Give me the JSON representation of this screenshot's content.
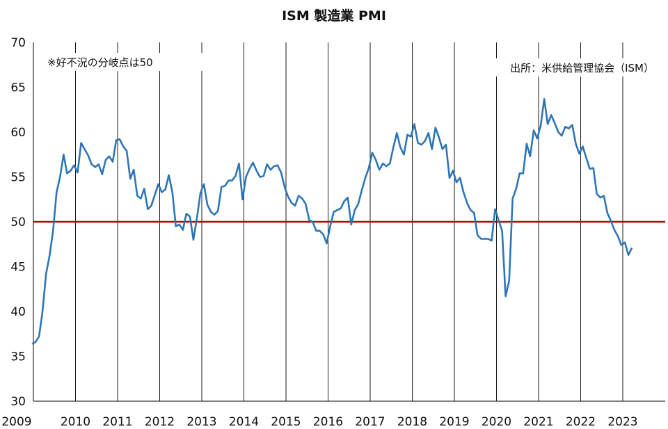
{
  "chart_data": {
    "type": "line",
    "title": "ISM 製造業 PMI",
    "annotations": {
      "note_left": "※好不況の分岐点は50",
      "note_right": "出所：米供給管理協会（ISM）"
    },
    "ylim": [
      30,
      70
    ],
    "y_ticks": [
      "30",
      "35",
      "40",
      "45",
      "50",
      "55",
      "60",
      "65",
      "70"
    ],
    "x_ticks": [
      "2009",
      "2010",
      "2011",
      "2012",
      "2013",
      "2014",
      "2015",
      "2016",
      "2017",
      "2018",
      "2019",
      "2020",
      "2021",
      "2022",
      "2023"
    ],
    "grid": "vertical",
    "legend": "none",
    "reference_line": {
      "value": 50,
      "color": "#c00000"
    },
    "series_color": "#2e75b6",
    "start_month": "2009-01",
    "series": [
      {
        "values": [
          36.4,
          36.6,
          37.2,
          40.0,
          44.2,
          46.2,
          49.0,
          53.3,
          55.0,
          57.5,
          55.4,
          55.7,
          56.3,
          55.5,
          58.8,
          58.1,
          57.4,
          56.4,
          56.1,
          56.4,
          55.3,
          56.9,
          57.3,
          56.7,
          59.1,
          59.2,
          58.4,
          57.9,
          54.8,
          55.8,
          52.9,
          52.6,
          53.7,
          51.4,
          51.8,
          53.0,
          54.2,
          53.3,
          53.6,
          55.2,
          53.3,
          49.5,
          49.7,
          49.1,
          50.9,
          50.6,
          48.0,
          50.4,
          53.2,
          54.2,
          51.9,
          51.1,
          50.8,
          51.2,
          53.9,
          54.0,
          54.6,
          54.6,
          55.1,
          56.5,
          52.5,
          55.0,
          55.9,
          56.6,
          55.7,
          55.0,
          55.1,
          56.4,
          55.8,
          56.2,
          56.3,
          55.5,
          53.9,
          52.8,
          52.1,
          51.8,
          52.9,
          52.6,
          52.0,
          50.2,
          50.0,
          49.0,
          49.0,
          48.6,
          47.6,
          49.5,
          51.1,
          51.3,
          51.5,
          52.3,
          52.7,
          49.7,
          51.3,
          52.0,
          53.5,
          54.9,
          56.0,
          57.7,
          56.9,
          55.8,
          56.5,
          56.2,
          56.5,
          58.3,
          59.9,
          58.3,
          57.5,
          59.7,
          59.5,
          60.9,
          58.8,
          58.6,
          59.0,
          59.9,
          58.1,
          60.5,
          59.4,
          58.1,
          58.6,
          54.9,
          55.7,
          54.4,
          54.9,
          53.3,
          52.1,
          51.3,
          51.0,
          48.5,
          48.1,
          48.1,
          48.1,
          47.9,
          51.4,
          50.2,
          49.0,
          41.7,
          43.4,
          52.6,
          53.7,
          55.4,
          55.4,
          58.7,
          57.3,
          60.2,
          59.3,
          60.7,
          63.7,
          60.9,
          61.9,
          61.0,
          60.0,
          59.6,
          60.6,
          60.4,
          60.8,
          58.7,
          57.6,
          58.4,
          57.1,
          55.9,
          56.0,
          53.1,
          52.7,
          52.9,
          51.0,
          50.1,
          49.1,
          48.4,
          47.4,
          47.7,
          46.3,
          47.1
        ]
      }
    ]
  }
}
